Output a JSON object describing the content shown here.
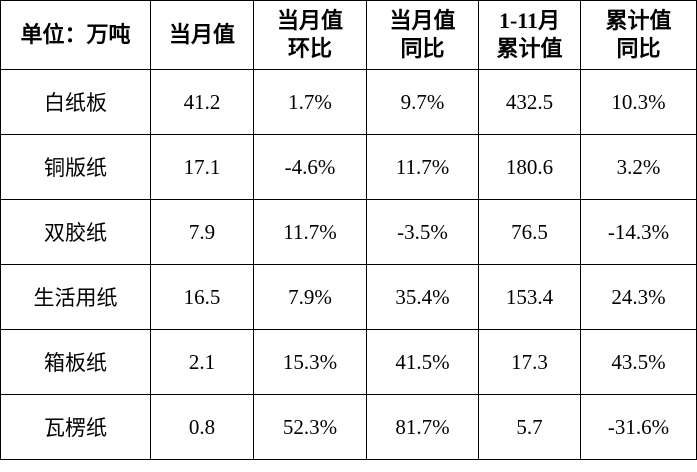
{
  "table": {
    "header": [
      [
        "单位：万吨"
      ],
      [
        "当月值"
      ],
      [
        "当月值",
        "环比"
      ],
      [
        "当月值",
        "同比"
      ],
      [
        "1-11月",
        "累计值"
      ],
      [
        "累计值",
        "同比"
      ]
    ],
    "rows": [
      [
        "白纸板",
        "41.2",
        "1.7%",
        "9.7%",
        "432.5",
        "10.3%"
      ],
      [
        "铜版纸",
        "17.1",
        "-4.6%",
        "11.7%",
        "180.6",
        "3.2%"
      ],
      [
        "双胶纸",
        "7.9",
        "11.7%",
        "-3.5%",
        "76.5",
        "-14.3%"
      ],
      [
        "生活用纸",
        "16.5",
        "7.9%",
        "35.4%",
        "153.4",
        "24.3%"
      ],
      [
        "箱板纸",
        "2.1",
        "15.3%",
        "41.5%",
        "17.3",
        "43.5%"
      ],
      [
        "瓦楞纸",
        "0.8",
        "52.3%",
        "81.7%",
        "5.7",
        "-31.6%"
      ]
    ]
  }
}
